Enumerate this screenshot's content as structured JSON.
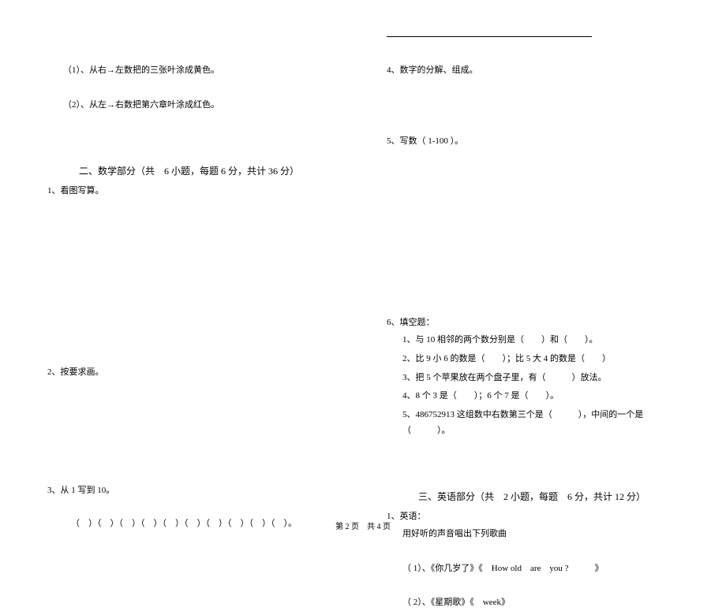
{
  "page_footer": "第 2 页　共 4 页",
  "left": {
    "l1": "（1）、从右→左数把的三张叶涂成黄色。",
    "l2": "（2）、从左→右数把第六章叶涂成红色。",
    "section2_title": "二、数学部分（共　6 小题，每题 6 分，共计 36 分）",
    "q1": "1、看图写算。",
    "q2": "2、按要求画。",
    "q3": "3、从 1 写到 10。",
    "paren_row": "（　）（　）（　）（　）（　）（　）（　）（　）（　）（　）。"
  },
  "right": {
    "q4": "4、数字的分解、组成。",
    "q5": "5、写数（ 1-100 ）。",
    "q6": "6、填空题：",
    "q6_1": "1、与 10 相邻的两个数分别是（　　）和（　　）。",
    "q6_2": "2、比 9 小 6 的数是（　　）；比 5 大 4 的数是（　　）",
    "q6_3": "3、把 5 个苹果放在两个盘子里，有（　　　）放法。",
    "q6_4": "4、8 个 3 是（　　）；6 个 7 是（　　）。",
    "q6_5": "5、486752913 这组数中右数第三个是（　　　），中间的一个是（　　　）。",
    "section3_title": "三、英语部分（共　2 小题，每题　6 分，共计 12 分）",
    "q_eng": "1、英语：",
    "q_eng_sub": "用好听的声音唱出下列歌曲",
    "q_eng_1": "（ 1）、《你几岁了》《　How old　are　you ?　　　》",
    "q_eng_2": "（ 2）、《星期歌》《　week》"
  }
}
